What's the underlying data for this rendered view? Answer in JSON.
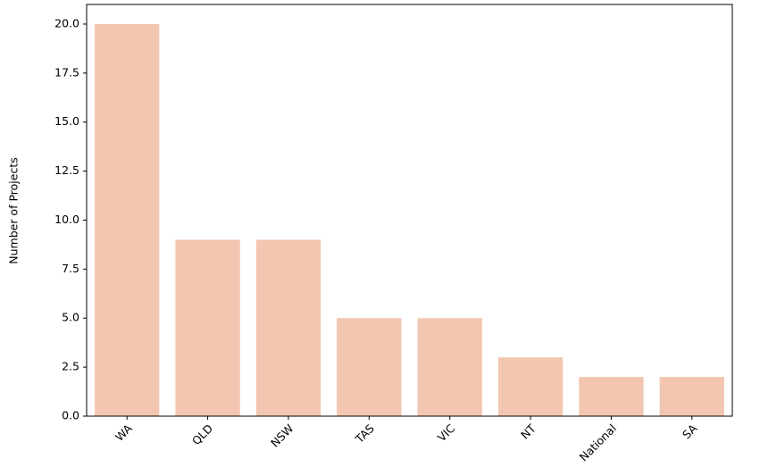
{
  "chart_data": {
    "type": "bar",
    "y_label": "Number of Projects",
    "categories": [
      "WA",
      "QLD",
      "NSW",
      "TAS",
      "VIC",
      "NT",
      "National",
      "SA"
    ],
    "values": [
      20,
      9,
      9,
      5,
      5,
      3,
      2,
      2
    ],
    "color": "#f2c6b0",
    "ylim": [
      0,
      21
    ],
    "yticks": [
      {
        "value": 0,
        "label": "0.0"
      },
      2.5,
      {
        "value": 5,
        "label": "5.0"
      },
      7.5,
      {
        "value": 10,
        "label": "10.0"
      },
      12.5,
      {
        "value": 15,
        "label": "15.0"
      },
      17.5,
      {
        "value": 20,
        "label": "20.0"
      }
    ],
    "grid": false
  }
}
